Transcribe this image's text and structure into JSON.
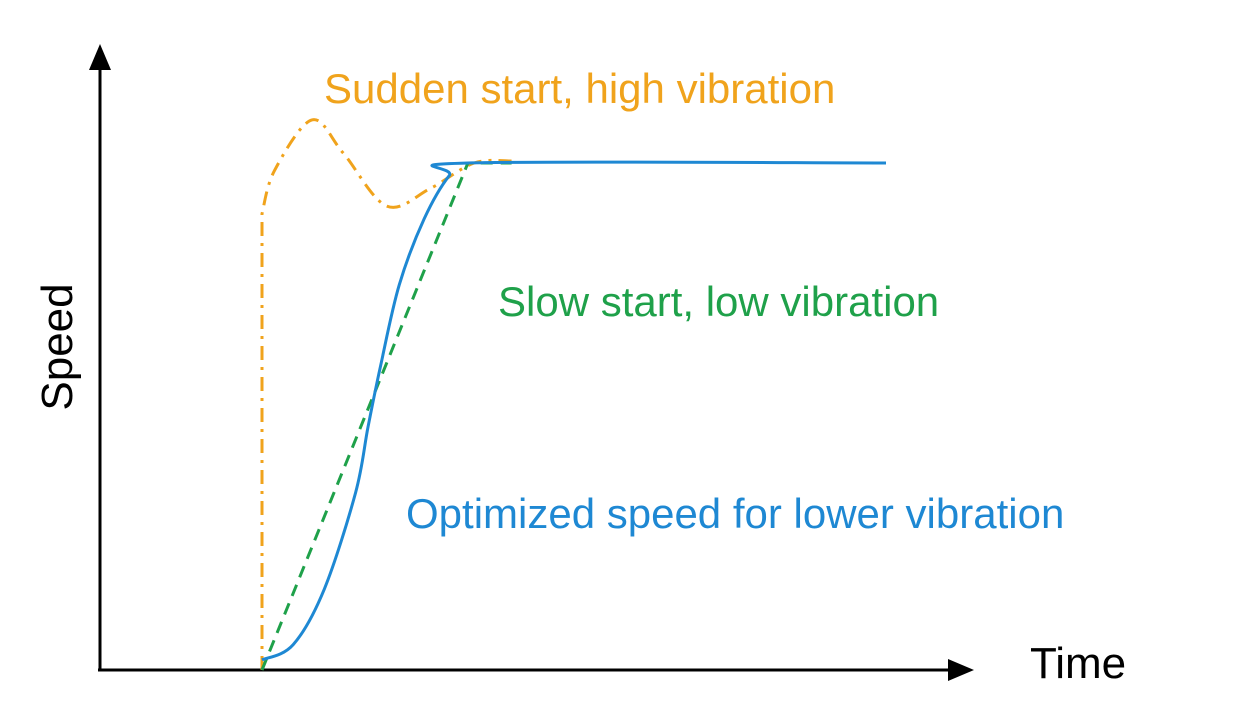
{
  "chart_data": {
    "type": "line",
    "xlabel": "Time",
    "ylabel": "Speed",
    "axis_ticks": false,
    "grid": false,
    "units_note": "",
    "series": [
      {
        "name": "Sudden start, high vibration",
        "color": "#F0A31C",
        "dash": "dash-dot",
        "points": [
          [
            0.0,
            0.0
          ],
          [
            0.0,
            0.9
          ],
          [
            0.02,
            0.985
          ],
          [
            0.08,
            1.085
          ],
          [
            0.13,
            1.02
          ],
          [
            0.2,
            0.915
          ],
          [
            0.27,
            0.95
          ],
          [
            0.34,
            1.0
          ],
          [
            0.4,
            1.004
          ]
        ]
      },
      {
        "name": "Slow start, low vibration",
        "color": "#1FA14A",
        "dash": "dashed",
        "points": [
          [
            0.0,
            0.0
          ],
          [
            0.33,
            1.0
          ],
          [
            0.4,
            1.0
          ]
        ]
      },
      {
        "name": "Optimized speed for lower vibration",
        "color": "#1E88D3",
        "dash": "solid",
        "points": [
          [
            0.0,
            0.02
          ],
          [
            0.05,
            0.05
          ],
          [
            0.1,
            0.16
          ],
          [
            0.15,
            0.35
          ],
          [
            0.17,
            0.48
          ],
          [
            0.19,
            0.6
          ],
          [
            0.22,
            0.76
          ],
          [
            0.26,
            0.89
          ],
          [
            0.3,
            0.975
          ],
          [
            0.33,
            1.0
          ],
          [
            1.0,
            1.0
          ]
        ]
      }
    ],
    "annotations": [
      {
        "text": "Sudden start, high vibration",
        "color": "#F0A31C"
      },
      {
        "text": "Slow start, low vibration",
        "color": "#1FA14A"
      },
      {
        "text": "Optimized speed for lower vibration",
        "color": "#1E88D3"
      }
    ]
  }
}
